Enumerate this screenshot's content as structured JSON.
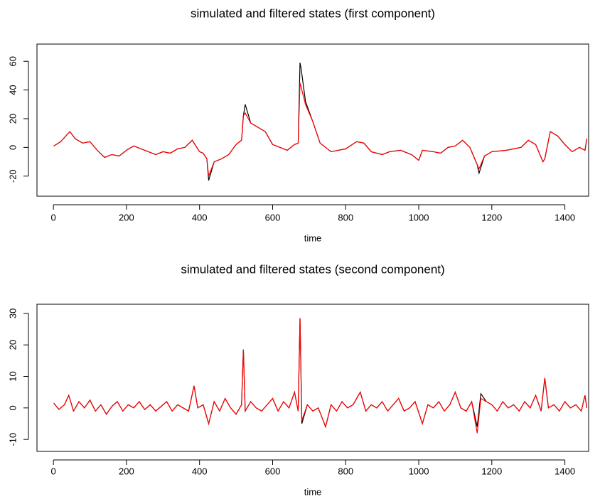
{
  "chart_data": [
    {
      "type": "line",
      "title": "simulated and filtered states (first component)",
      "xlabel": "time",
      "x": [
        1,
        20,
        45,
        60,
        80,
        100,
        120,
        140,
        160,
        180,
        200,
        220,
        240,
        260,
        280,
        300,
        320,
        340,
        360,
        380,
        400,
        410,
        420,
        425,
        440,
        460,
        480,
        500,
        515,
        520,
        525,
        540,
        560,
        580,
        600,
        620,
        640,
        660,
        670,
        675,
        678,
        690,
        710,
        730,
        760,
        800,
        830,
        850,
        870,
        900,
        920,
        950,
        980,
        1000,
        1010,
        1040,
        1060,
        1080,
        1100,
        1120,
        1140,
        1160,
        1165,
        1180,
        1200,
        1240,
        1280,
        1300,
        1320,
        1340,
        1345,
        1360,
        1380,
        1400,
        1420,
        1440,
        1455,
        1460
      ],
      "series": [
        {
          "color": "#000000",
          "values": [
            1,
            4,
            11,
            6,
            3,
            4,
            -2,
            -7,
            -5,
            -6,
            -2,
            1,
            -1,
            -3,
            -5,
            -3,
            -4,
            -1,
            0,
            5,
            -3,
            -4,
            -8,
            -23,
            -10,
            -8,
            -5,
            2,
            5,
            22,
            30,
            17,
            14,
            11,
            2,
            0,
            -2,
            2,
            3,
            59,
            55,
            32,
            18,
            3,
            -3,
            -1,
            4,
            3,
            -3,
            -5,
            -3,
            -2,
            -5,
            -9,
            -2,
            -3,
            -4,
            0,
            1,
            5,
            0,
            -12,
            -18,
            -6,
            -3,
            -2,
            0,
            5,
            2,
            -10,
            -8,
            11,
            8,
            2,
            -3,
            0,
            -2,
            6
          ]
        },
        {
          "color": "#ff0000",
          "values": [
            1,
            4,
            11,
            6,
            3,
            4,
            -2,
            -7,
            -5,
            -6,
            -2,
            1,
            -1,
            -3,
            -5,
            -3,
            -4,
            -1,
            0,
            5,
            -3,
            -4,
            -8,
            -20,
            -10,
            -8,
            -5,
            2,
            5,
            22,
            24,
            17,
            14,
            11,
            2,
            0,
            -2,
            2,
            3,
            45,
            42,
            30,
            18,
            3,
            -3,
            -1,
            4,
            3,
            -3,
            -5,
            -3,
            -2,
            -5,
            -9,
            -2,
            -3,
            -4,
            0,
            1,
            5,
            0,
            -12,
            -15,
            -6,
            -3,
            -2,
            0,
            5,
            2,
            -10,
            -8,
            11,
            8,
            2,
            -3,
            0,
            -2,
            6
          ]
        }
      ],
      "xlim": [
        -45,
        1465
      ],
      "xticks": [
        0,
        200,
        400,
        600,
        800,
        1000,
        1200,
        1400
      ],
      "ylim": [
        -34,
        72
      ],
      "yticks": [
        -20,
        0,
        20,
        40,
        60
      ]
    },
    {
      "type": "line",
      "title": "simulated and filtered states (second component)",
      "xlabel": "time",
      "x": [
        1,
        15,
        30,
        42,
        55,
        70,
        85,
        100,
        115,
        130,
        145,
        160,
        175,
        190,
        205,
        220,
        235,
        250,
        265,
        280,
        295,
        310,
        325,
        340,
        355,
        370,
        385,
        395,
        410,
        425,
        440,
        455,
        470,
        485,
        500,
        515,
        520,
        525,
        540,
        555,
        570,
        585,
        600,
        615,
        630,
        645,
        660,
        670,
        675,
        680,
        695,
        710,
        725,
        745,
        760,
        775,
        790,
        805,
        820,
        840,
        855,
        870,
        885,
        900,
        915,
        930,
        945,
        960,
        975,
        990,
        1010,
        1025,
        1040,
        1055,
        1070,
        1085,
        1100,
        1115,
        1130,
        1145,
        1160,
        1170,
        1185,
        1200,
        1215,
        1230,
        1245,
        1260,
        1275,
        1290,
        1305,
        1320,
        1335,
        1345,
        1355,
        1370,
        1385,
        1400,
        1415,
        1430,
        1445,
        1455,
        1460
      ],
      "series": [
        {
          "color": "#000000",
          "values": [
            1.5,
            -0.5,
            1,
            4,
            -1,
            2,
            0,
            2.5,
            -1,
            1,
            -2,
            0.5,
            2,
            -1,
            1,
            0,
            2,
            -0.5,
            1,
            -1,
            0.5,
            2,
            -1,
            1,
            0,
            -1,
            7,
            0,
            1,
            -5,
            2,
            -1,
            3,
            0,
            -2,
            1,
            18.5,
            -1,
            2,
            0,
            -1,
            1,
            3,
            -1,
            2,
            0,
            5,
            -1,
            28.5,
            -5,
            1,
            -1,
            0,
            -6,
            1,
            -1,
            2,
            0,
            1,
            5,
            -1,
            1,
            0,
            2,
            -1,
            1,
            3,
            -1,
            0,
            2,
            -5,
            1,
            0,
            2,
            -1,
            1,
            5,
            0,
            -1,
            2,
            -6,
            4.5,
            2,
            1,
            -1,
            2,
            0,
            1,
            -1,
            2,
            0,
            4,
            -1,
            9.5,
            0,
            1,
            -1,
            2,
            0,
            1,
            -1,
            4,
            0
          ]
        },
        {
          "color": "#ff0000",
          "values": [
            1.5,
            -0.5,
            1,
            4,
            -1,
            2,
            0,
            2.5,
            -1,
            1,
            -2,
            0.5,
            2,
            -1,
            1,
            0,
            2,
            -0.5,
            1,
            -1,
            0.5,
            2,
            -1,
            1,
            0,
            -1,
            7,
            0,
            1,
            -5,
            2,
            -1,
            3,
            0,
            -2,
            1,
            18.5,
            -1,
            2,
            0,
            -1,
            1,
            3,
            -1,
            2,
            0,
            5,
            -1,
            28.5,
            -4,
            1,
            -1,
            0,
            -6,
            1,
            -1,
            2,
            0,
            1,
            5,
            -1,
            1,
            0,
            2,
            -1,
            1,
            3,
            -1,
            0,
            2,
            -5,
            1,
            0,
            2,
            -1,
            1,
            5,
            0,
            -1,
            2,
            -8,
            3,
            2,
            1,
            -1,
            2,
            0,
            1,
            -1,
            2,
            0,
            4,
            -1,
            9.5,
            0,
            1,
            -1,
            2,
            0,
            1,
            -1,
            4,
            0
          ]
        }
      ],
      "xlim": [
        -45,
        1465
      ],
      "xticks": [
        0,
        200,
        400,
        600,
        800,
        1000,
        1200,
        1400
      ],
      "ylim": [
        -13.8,
        32.9
      ],
      "yticks": [
        -10,
        0,
        10,
        20,
        30
      ]
    }
  ]
}
